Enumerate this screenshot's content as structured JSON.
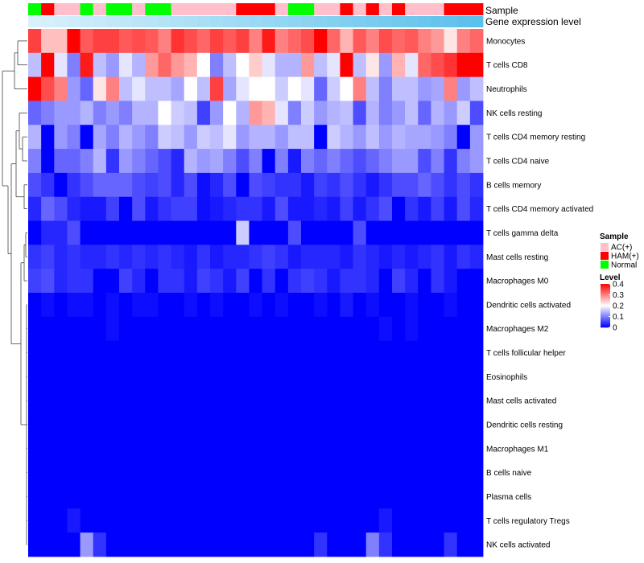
{
  "chart_data": {
    "type": "heatmap",
    "annotation_tracks": [
      {
        "name": "Sample",
        "values": [
          "Normal",
          "HAM(+)",
          "AC(+)",
          "AC(+)",
          "Normal",
          "AC(+)",
          "Normal",
          "Normal",
          "AC(+)",
          "Normal",
          "Normal",
          "AC(+)",
          "AC(+)",
          "AC(+)",
          "AC(+)",
          "AC(+)",
          "HAM(+)",
          "HAM(+)",
          "HAM(+)",
          "AC(+)",
          "Normal",
          "Normal",
          "AC(+)",
          "AC(+)",
          "HAM(+)",
          "AC(+)",
          "HAM(+)",
          "AC(+)",
          "HAM(+)",
          "AC(+)",
          "AC(+)",
          "AC(+)",
          "HAM(+)",
          "HAM(+)",
          "HAM(+)"
        ]
      },
      {
        "name": "Gene expression level",
        "values": [
          "0.00",
          "0.03",
          "0.06",
          "0.09",
          "0.12",
          "0.15",
          "0.18",
          "0.21",
          "0.24",
          "0.26",
          "0.29",
          "0.32",
          "0.35",
          "0.38",
          "0.41",
          "0.44",
          "0.47",
          "0.50",
          "0.53",
          "0.56",
          "0.59",
          "0.62",
          "0.65",
          "0.68",
          "0.71",
          "0.74",
          "0.76",
          "0.79",
          "0.82",
          "0.85",
          "0.88",
          "0.91",
          "0.94",
          "0.97",
          "1.00"
        ]
      }
    ],
    "rows": [
      "Monocytes",
      "T cells CD8",
      "Neutrophils",
      "NK cells resting",
      "T cells CD4 memory resting",
      "T cells CD4 naive",
      "B cells memory",
      "T cells CD4 memory activated",
      "T cells gamma delta",
      "Mast cells resting",
      "Macrophages M0",
      "Dendritic cells activated",
      "Macrophages M2",
      "T cells follicular helper",
      "Eosinophils",
      "Mast cells activated",
      "Dendritic cells resting",
      "Macrophages M1",
      "B cells naive",
      "Plasma cells",
      "T cells regulatory  Tregs",
      "NK cells activated"
    ],
    "values": [
      [
        0.35,
        0.25,
        0.25,
        0.4,
        0.33,
        0.35,
        0.35,
        0.33,
        0.34,
        0.33,
        0.3,
        0.36,
        0.34,
        0.32,
        0.35,
        0.33,
        0.35,
        0.3,
        0.38,
        0.3,
        0.32,
        0.34,
        0.4,
        0.32,
        0.26,
        0.33,
        0.3,
        0.34,
        0.32,
        0.33,
        0.3,
        0.28,
        0.22,
        0.3,
        0.32
      ],
      [
        0.15,
        0.4,
        0.18,
        0.1,
        0.38,
        0.15,
        0.12,
        0.18,
        0.14,
        0.28,
        0.32,
        0.28,
        0.26,
        0.2,
        0.1,
        0.15,
        0.2,
        0.24,
        0.18,
        0.14,
        0.14,
        0.28,
        0.15,
        0.18,
        0.4,
        0.15,
        0.22,
        0.12,
        0.26,
        0.18,
        0.32,
        0.34,
        0.36,
        0.42,
        0.42
      ],
      [
        0.4,
        0.34,
        0.3,
        0.12,
        0.08,
        0.22,
        0.3,
        0.15,
        0.18,
        0.15,
        0.15,
        0.13,
        0.2,
        0.15,
        0.35,
        0.13,
        0.18,
        0.2,
        0.2,
        0.16,
        0.2,
        0.18,
        0.08,
        0.16,
        0.2,
        0.3,
        0.15,
        0.1,
        0.15,
        0.15,
        0.12,
        0.13,
        0.3,
        0.12,
        0.15
      ],
      [
        0.08,
        0.1,
        0.12,
        0.12,
        0.14,
        0.1,
        0.12,
        0.1,
        0.14,
        0.14,
        0.2,
        0.16,
        0.15,
        0.05,
        0.12,
        0.2,
        0.14,
        0.28,
        0.26,
        0.18,
        0.1,
        0.16,
        0.12,
        0.14,
        0.15,
        0.06,
        0.14,
        0.1,
        0.12,
        0.15,
        0.08,
        0.14,
        0.12,
        0.16,
        0.06
      ],
      [
        0.14,
        0.0,
        0.12,
        0.1,
        0.0,
        0.13,
        0.1,
        0.14,
        0.12,
        0.1,
        0.16,
        0.15,
        0.12,
        0.16,
        0.15,
        0.18,
        0.12,
        0.14,
        0.14,
        0.12,
        0.15,
        0.15,
        0.0,
        0.16,
        0.14,
        0.12,
        0.15,
        0.12,
        0.14,
        0.13,
        0.13,
        0.12,
        0.1,
        0.0,
        0.12
      ],
      [
        0.1,
        0.0,
        0.08,
        0.08,
        0.1,
        0.14,
        0.04,
        0.12,
        0.1,
        0.08,
        0.06,
        0.03,
        0.14,
        0.12,
        0.13,
        0.1,
        0.06,
        0.1,
        0.0,
        0.1,
        0.02,
        0.1,
        0.08,
        0.1,
        0.08,
        0.06,
        0.08,
        0.1,
        0.12,
        0.12,
        0.06,
        0.1,
        0.04,
        0.1,
        0.12
      ],
      [
        0.06,
        0.04,
        0.0,
        0.04,
        0.06,
        0.08,
        0.08,
        0.08,
        0.06,
        0.05,
        0.06,
        0.03,
        0.06,
        0.01,
        0.03,
        0.06,
        0.0,
        0.06,
        0.05,
        0.04,
        0.04,
        0.02,
        0.05,
        0.04,
        0.06,
        0.04,
        0.02,
        0.04,
        0.06,
        0.06,
        0.08,
        0.06,
        0.04,
        0.06,
        0.04
      ],
      [
        0.03,
        0.08,
        0.06,
        0.03,
        0.02,
        0.02,
        0.05,
        0.0,
        0.06,
        0.02,
        0.04,
        0.05,
        0.05,
        0.01,
        0.02,
        0.03,
        0.04,
        0.04,
        0.02,
        0.06,
        0.02,
        0.02,
        0.03,
        0.02,
        0.05,
        0.02,
        0.04,
        0.06,
        0.0,
        0.04,
        0.02,
        0.05,
        0.02,
        0.06,
        0.03
      ],
      [
        0.0,
        0.03,
        0.03,
        0.06,
        0.0,
        0.0,
        0.0,
        0.0,
        0.0,
        0.0,
        0.0,
        0.0,
        0.0,
        0.0,
        0.0,
        0.0,
        0.16,
        0.0,
        0.0,
        0.0,
        0.06,
        0.0,
        0.0,
        0.0,
        0.0,
        0.06,
        0.0,
        0.0,
        0.0,
        0.0,
        0.0,
        0.0,
        0.0,
        0.0,
        0.0
      ],
      [
        0.04,
        0.05,
        0.03,
        0.04,
        0.03,
        0.03,
        0.04,
        0.03,
        0.04,
        0.03,
        0.04,
        0.03,
        0.02,
        0.04,
        0.02,
        0.03,
        0.03,
        0.04,
        0.05,
        0.04,
        0.02,
        0.03,
        0.03,
        0.03,
        0.02,
        0.04,
        0.03,
        0.02,
        0.03,
        0.02,
        0.03,
        0.04,
        0.02,
        0.04,
        0.03
      ],
      [
        0.05,
        0.06,
        0.03,
        0.04,
        0.04,
        0.0,
        0.0,
        0.05,
        0.03,
        0.0,
        0.04,
        0.04,
        0.02,
        0.05,
        0.04,
        0.02,
        0.05,
        0.0,
        0.04,
        0.0,
        0.04,
        0.05,
        0.04,
        0.02,
        0.04,
        0.04,
        0.03,
        0.0,
        0.05,
        0.03,
        0.0,
        0.04,
        0.02,
        0.0,
        0.0
      ],
      [
        0.0,
        0.01,
        0.0,
        0.01,
        0.01,
        0.0,
        0.01,
        0.0,
        0.01,
        0.01,
        0.0,
        0.0,
        0.01,
        0.0,
        0.01,
        0.0,
        0.0,
        0.01,
        0.0,
        0.01,
        0.0,
        0.0,
        0.01,
        0.0,
        0.02,
        0.0,
        0.01,
        0.0,
        0.0,
        0.01,
        0.0,
        0.0,
        0.01,
        0.0,
        0.0
      ],
      [
        0.0,
        0.0,
        0.0,
        0.0,
        0.0,
        0.0,
        0.01,
        0.0,
        0.0,
        0.0,
        0.0,
        0.0,
        0.0,
        0.0,
        0.0,
        0.0,
        0.0,
        0.0,
        0.0,
        0.0,
        0.0,
        0.0,
        0.0,
        0.0,
        0.0,
        0.0,
        0.0,
        0.01,
        0.0,
        0.01,
        0.0,
        0.0,
        0.0,
        0.0,
        0.0
      ],
      [
        0.0,
        0.0,
        0.0,
        0.0,
        0.0,
        0.0,
        0.0,
        0.0,
        0.0,
        0.0,
        0.0,
        0.0,
        0.0,
        0.0,
        0.0,
        0.0,
        0.0,
        0.0,
        0.0,
        0.0,
        0.0,
        0.0,
        0.0,
        0.0,
        0.0,
        0.0,
        0.0,
        0.0,
        0.0,
        0.0,
        0.0,
        0.0,
        0.0,
        0.0,
        0.0
      ],
      [
        0.0,
        0.0,
        0.0,
        0.0,
        0.0,
        0.0,
        0.0,
        0.0,
        0.0,
        0.0,
        0.0,
        0.0,
        0.0,
        0.0,
        0.0,
        0.0,
        0.0,
        0.0,
        0.0,
        0.0,
        0.0,
        0.0,
        0.0,
        0.0,
        0.0,
        0.0,
        0.0,
        0.0,
        0.0,
        0.0,
        0.0,
        0.0,
        0.0,
        0.0,
        0.0
      ],
      [
        0.0,
        0.0,
        0.0,
        0.0,
        0.0,
        0.0,
        0.0,
        0.0,
        0.0,
        0.0,
        0.0,
        0.0,
        0.0,
        0.0,
        0.0,
        0.0,
        0.0,
        0.0,
        0.0,
        0.0,
        0.0,
        0.0,
        0.0,
        0.0,
        0.0,
        0.0,
        0.0,
        0.0,
        0.0,
        0.0,
        0.0,
        0.0,
        0.0,
        0.0,
        0.0
      ],
      [
        0.0,
        0.0,
        0.0,
        0.0,
        0.0,
        0.0,
        0.0,
        0.0,
        0.0,
        0.0,
        0.0,
        0.0,
        0.0,
        0.0,
        0.0,
        0.0,
        0.0,
        0.0,
        0.0,
        0.0,
        0.0,
        0.0,
        0.0,
        0.0,
        0.0,
        0.0,
        0.0,
        0.0,
        0.0,
        0.0,
        0.0,
        0.0,
        0.0,
        0.0,
        0.0
      ],
      [
        0.0,
        0.0,
        0.0,
        0.0,
        0.0,
        0.0,
        0.0,
        0.0,
        0.0,
        0.0,
        0.0,
        0.0,
        0.0,
        0.0,
        0.0,
        0.0,
        0.0,
        0.0,
        0.0,
        0.0,
        0.0,
        0.0,
        0.0,
        0.0,
        0.0,
        0.0,
        0.0,
        0.0,
        0.0,
        0.0,
        0.0,
        0.0,
        0.0,
        0.0,
        0.0
      ],
      [
        0.0,
        0.0,
        0.0,
        0.0,
        0.0,
        0.0,
        0.0,
        0.0,
        0.0,
        0.0,
        0.0,
        0.0,
        0.0,
        0.0,
        0.0,
        0.0,
        0.0,
        0.0,
        0.0,
        0.0,
        0.0,
        0.0,
        0.0,
        0.0,
        0.0,
        0.0,
        0.0,
        0.0,
        0.0,
        0.0,
        0.0,
        0.0,
        0.0,
        0.0,
        0.0
      ],
      [
        0.0,
        0.0,
        0.0,
        0.0,
        0.0,
        0.0,
        0.0,
        0.0,
        0.0,
        0.0,
        0.0,
        0.0,
        0.0,
        0.0,
        0.0,
        0.0,
        0.0,
        0.0,
        0.0,
        0.0,
        0.0,
        0.0,
        0.0,
        0.0,
        0.0,
        0.0,
        0.0,
        0.0,
        0.0,
        0.0,
        0.0,
        0.0,
        0.0,
        0.0,
        0.0
      ],
      [
        0.0,
        0.0,
        0.0,
        0.02,
        0.0,
        0.0,
        0.0,
        0.0,
        0.0,
        0.0,
        0.0,
        0.0,
        0.0,
        0.0,
        0.0,
        0.0,
        0.0,
        0.0,
        0.0,
        0.0,
        0.0,
        0.0,
        0.0,
        0.0,
        0.0,
        0.0,
        0.0,
        0.02,
        0.0,
        0.0,
        0.0,
        0.0,
        0.0,
        0.0,
        0.0
      ],
      [
        0.0,
        0.0,
        0.0,
        0.0,
        0.12,
        0.04,
        0.0,
        0.0,
        0.0,
        0.0,
        0.0,
        0.0,
        0.0,
        0.0,
        0.0,
        0.0,
        0.0,
        0.0,
        0.0,
        0.0,
        0.0,
        0.0,
        0.04,
        0.0,
        0.0,
        0.0,
        0.1,
        0.04,
        0.0,
        0.0,
        0.0,
        0.0,
        0.04,
        0.0,
        0.0
      ]
    ],
    "legends": {
      "sample": {
        "title": "Sample",
        "entries": [
          {
            "label": "AC(+)",
            "color": "#ffc0cb"
          },
          {
            "label": "HAM(+)",
            "color": "#ff0000"
          },
          {
            "label": "Normal",
            "color": "#00ff00"
          }
        ]
      },
      "level": {
        "title": "Level",
        "ticks": [
          "0.4",
          "0.3",
          "0.2",
          "0.1",
          "0"
        ],
        "range": [
          0,
          0.4
        ]
      }
    },
    "colorscale": {
      "low": "#0000ff",
      "mid": "#ffffff",
      "high": "#ff0000",
      "mid_value": 0.2
    },
    "track_colors": {
      "AC(+)": "#ffc0cb",
      "HAM(+)": "#ff0000",
      "Normal": "#00ff00"
    },
    "gene_expression_gradient": {
      "from": "#d9f1fb",
      "to": "#5bc0eb"
    }
  }
}
